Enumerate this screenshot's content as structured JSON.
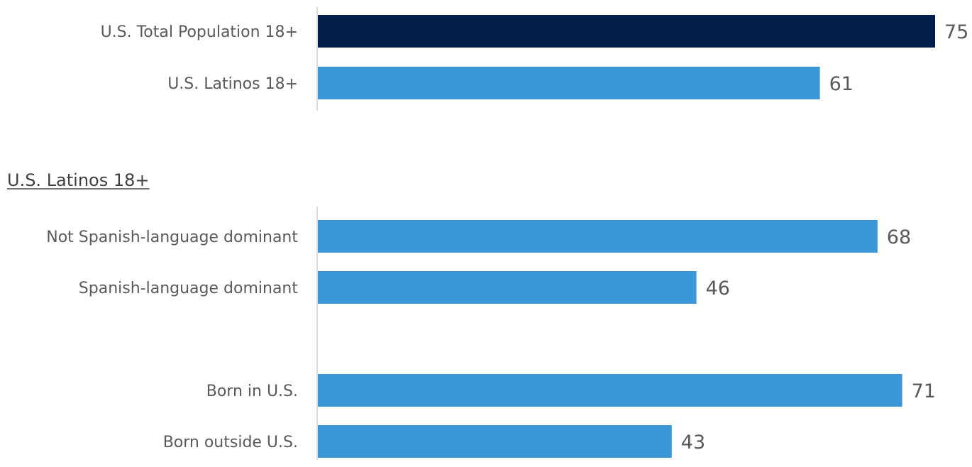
{
  "colors": {
    "dark_bar": "#051F4D",
    "light_bar": "#3B96D8",
    "label_text": "#595959",
    "heading_text": "#404040"
  },
  "chart_data": [
    {
      "type": "bar",
      "orientation": "horizontal",
      "title": "",
      "categories": [
        "U.S. Total Population 18+",
        "U.S. Latinos 18+"
      ],
      "values": [
        75,
        61
      ],
      "bar_colors": [
        "#051F4D",
        "#3B96D8"
      ],
      "xlim": [
        0,
        75
      ],
      "grid": false,
      "legend": "none"
    },
    {
      "type": "bar",
      "orientation": "horizontal",
      "title": "U.S. Latinos 18+",
      "categories": [
        "Not Spanish-language dominant",
        "Spanish-language dominant",
        "Born in U.S.",
        "Born outside U.S."
      ],
      "values": [
        68,
        46,
        71,
        43
      ],
      "bar_colors": [
        "#3B96D8",
        "#3B96D8",
        "#3B96D8",
        "#3B96D8"
      ],
      "xlim": [
        0,
        75
      ],
      "grid": false,
      "legend": "none"
    }
  ]
}
